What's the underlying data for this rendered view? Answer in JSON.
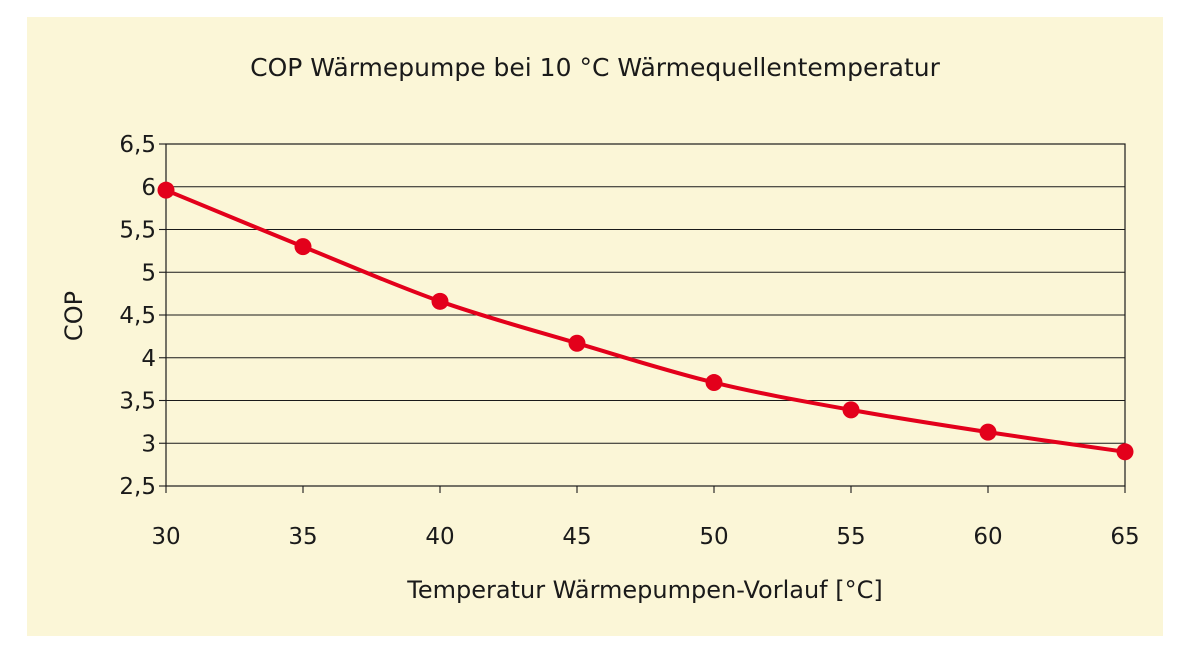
{
  "chart_data": {
    "type": "line",
    "title": "COP Wärmepumpe bei 10 °C Wärmequellentemperatur",
    "xlabel": "Temperatur Wärmepumpen-Vorlauf [°C]",
    "ylabel": "COP",
    "x": [
      30,
      35,
      40,
      45,
      50,
      55,
      60,
      65
    ],
    "x_tick_labels": [
      "30",
      "35",
      "40",
      "45",
      "50",
      "55",
      "60",
      "65"
    ],
    "y_tick_labels": [
      "2,5",
      "3",
      "3,5",
      "4",
      "4,5",
      "5",
      "5,5",
      "6",
      "6,5"
    ],
    "ylim": [
      2.5,
      6.5
    ],
    "xlim": [
      30,
      65
    ],
    "grid": "horizontal",
    "legend": "none",
    "series": [
      {
        "values": [
          5.96,
          5.3,
          4.66,
          4.17,
          3.71,
          3.39,
          3.13,
          2.9
        ],
        "color": "#e3001b"
      }
    ]
  }
}
